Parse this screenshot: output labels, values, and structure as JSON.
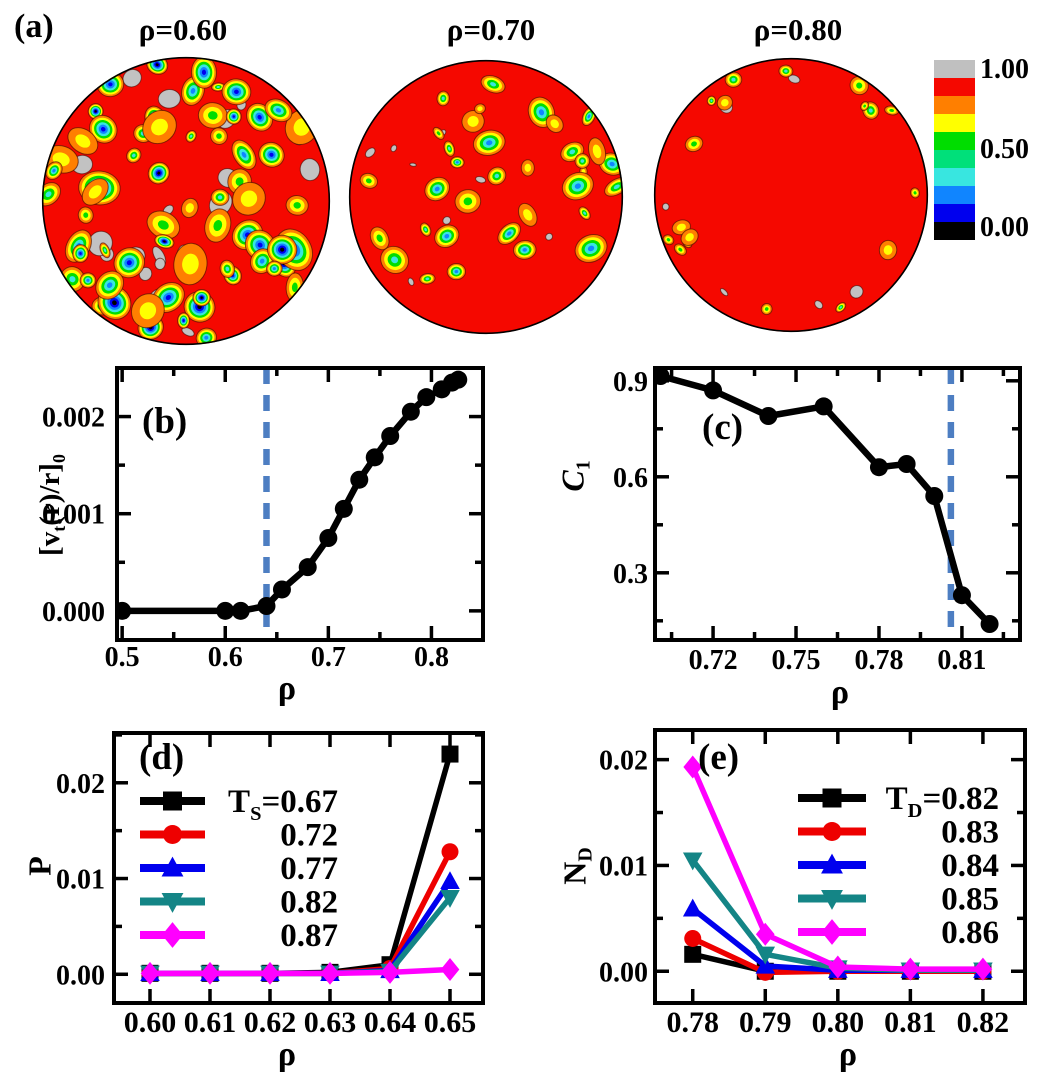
{
  "panel_a": {
    "label": "(a)",
    "plots": [
      {
        "title": "ρ=0.60",
        "description": "dense mixed contour field"
      },
      {
        "title": "ρ=0.70",
        "description": "mostly red, patches top and left"
      },
      {
        "title": "ρ=0.80",
        "description": "almost all red, small rim patches"
      }
    ],
    "colorbar": {
      "tick_labels": [
        "1.00",
        "0.50",
        "0.00"
      ],
      "colors": [
        "#c0c0c0",
        "#f50800",
        "#ff7f00",
        "#ffff00",
        "#00dd00",
        "#00e07a",
        "#38e6e0",
        "#1085ff",
        "#0000ee",
        "#000000"
      ]
    }
  },
  "chart_data": [
    {
      "id": "b",
      "panel": "(b)",
      "type": "line",
      "xlabel": "ρ",
      "ylabel_segments": [
        {
          "t": "[v"
        },
        {
          "t": "t",
          "sub": true
        },
        {
          "t": "(r)/r]"
        },
        {
          "t": "0",
          "sub": true
        }
      ],
      "xlim": [
        0.495,
        0.85
      ],
      "ylim": [
        -0.0003,
        0.0025
      ],
      "xticks": [
        0.5,
        0.6,
        0.7,
        0.8
      ],
      "xtick_labels": [
        "0.5",
        "0.6",
        "0.7",
        "0.8"
      ],
      "yticks": [
        0,
        0.001,
        0.002
      ],
      "ytick_labels": [
        "0.000",
        "0.001",
        "0.002"
      ],
      "xminor_step": 0.05,
      "yminor_step": 0.0005,
      "dashed_line_x": 0.64,
      "dashed_color": "#4d7ec2",
      "series": [
        {
          "name": "[vt(r)/r]0",
          "color": "#000000",
          "marker": "circle",
          "x": [
            0.5,
            0.6,
            0.615,
            0.64,
            0.655,
            0.68,
            0.7,
            0.715,
            0.73,
            0.745,
            0.76,
            0.78,
            0.795,
            0.81,
            0.82,
            0.826
          ],
          "y": [
            0.0,
            0.0,
            0.0,
            5e-05,
            0.00022,
            0.00045,
            0.00075,
            0.00105,
            0.00135,
            0.00158,
            0.0018,
            0.00205,
            0.0022,
            0.00228,
            0.00235,
            0.00238
          ]
        }
      ]
    },
    {
      "id": "c",
      "panel": "(c)",
      "type": "line",
      "xlabel": "ρ",
      "ylabel_segments": [
        {
          "t": "C",
          "italic": true
        },
        {
          "t": "1",
          "sub": true
        }
      ],
      "xlim": [
        0.699,
        0.831
      ],
      "ylim": [
        0.09,
        0.94
      ],
      "xticks": [
        0.72,
        0.75,
        0.78,
        0.81
      ],
      "xtick_labels": [
        "0.72",
        "0.75",
        "0.78",
        "0.81"
      ],
      "yticks": [
        0.3,
        0.6,
        0.9
      ],
      "ytick_labels": [
        "0.3",
        "0.6",
        "0.9"
      ],
      "xminor_step": 0.015,
      "yminor_step": 0.15,
      "dashed_line_x": 0.806,
      "dashed_color": "#4d7ec2",
      "series": [
        {
          "name": "C1",
          "color": "#000000",
          "marker": "circle",
          "x": [
            0.701,
            0.72,
            0.74,
            0.76,
            0.78,
            0.79,
            0.8,
            0.81,
            0.82
          ],
          "y": [
            0.915,
            0.87,
            0.79,
            0.82,
            0.63,
            0.64,
            0.54,
            0.23,
            0.14
          ]
        }
      ]
    },
    {
      "id": "d",
      "panel": "(d)",
      "type": "line",
      "xlabel": "ρ",
      "ylabel_segments": [
        {
          "t": "P"
        }
      ],
      "xlim": [
        0.594,
        0.6555
      ],
      "ylim": [
        -0.003,
        0.0252
      ],
      "xticks": [
        0.6,
        0.61,
        0.62,
        0.63,
        0.64,
        0.65
      ],
      "xtick_labels": [
        "0.60",
        "0.61",
        "0.62",
        "0.63",
        "0.64",
        "0.65"
      ],
      "yticks": [
        0,
        0.01,
        0.02
      ],
      "ytick_labels": [
        "0.00",
        "0.01",
        "0.02"
      ],
      "yminor_step": 0.005,
      "legend": {
        "entries": [
          {
            "segments": [
              {
                "t": "T"
              },
              {
                "t": "S",
                "sub": true
              },
              {
                "t": "=0.67"
              }
            ],
            "color": "#000000",
            "marker": "square"
          },
          {
            "segments": [
              {
                "t": "0.72"
              }
            ],
            "color": "#ee0000",
            "marker": "circle"
          },
          {
            "segments": [
              {
                "t": "0.77"
              }
            ],
            "color": "#0000ee",
            "marker": "triangle-up"
          },
          {
            "segments": [
              {
                "t": "0.82"
              }
            ],
            "color": "#148586",
            "marker": "triangle-down"
          },
          {
            "segments": [
              {
                "t": "0.87"
              }
            ],
            "color": "#ff00ff",
            "marker": "diamond"
          }
        ]
      },
      "series": [
        {
          "name": "TS=0.67",
          "color": "#000000",
          "marker": "square",
          "x": [
            0.6,
            0.61,
            0.62,
            0.63,
            0.64,
            0.65
          ],
          "y": [
            0.0001,
            0.0001,
            0.0001,
            0.0002,
            0.001,
            0.023
          ]
        },
        {
          "name": "TS=0.72",
          "color": "#ee0000",
          "marker": "circle",
          "x": [
            0.6,
            0.61,
            0.62,
            0.63,
            0.64,
            0.65
          ],
          "y": [
            0.0001,
            0.0001,
            0.0001,
            0.0001,
            0.0006,
            0.0128
          ]
        },
        {
          "name": "TS=0.77",
          "color": "#0000ee",
          "marker": "triangle-up",
          "x": [
            0.6,
            0.61,
            0.62,
            0.63,
            0.64,
            0.65
          ],
          "y": [
            0.0001,
            0.0001,
            0.0001,
            0.0001,
            0.0004,
            0.0097
          ]
        },
        {
          "name": "TS=0.82",
          "color": "#148586",
          "marker": "triangle-down",
          "x": [
            0.6,
            0.61,
            0.62,
            0.63,
            0.64,
            0.65
          ],
          "y": [
            0.0001,
            0.0001,
            0.0001,
            0.0001,
            0.0003,
            0.008
          ]
        },
        {
          "name": "TS=0.87",
          "color": "#ff00ff",
          "marker": "diamond",
          "x": [
            0.6,
            0.61,
            0.62,
            0.63,
            0.64,
            0.65
          ],
          "y": [
            0.0001,
            0.0001,
            0.0001,
            0.0001,
            0.0002,
            0.0005
          ]
        }
      ]
    },
    {
      "id": "e",
      "panel": "(e)",
      "type": "line",
      "xlabel": "ρ",
      "ylabel_segments": [
        {
          "t": "N"
        },
        {
          "t": "D",
          "sub": true
        }
      ],
      "xlim": [
        0.7748,
        0.8258
      ],
      "ylim": [
        -0.003,
        0.0228
      ],
      "xticks": [
        0.78,
        0.79,
        0.8,
        0.81,
        0.82
      ],
      "xtick_labels": [
        "0.78",
        "0.79",
        "0.80",
        "0.81",
        "0.82"
      ],
      "yticks": [
        0,
        0.01,
        0.02
      ],
      "ytick_labels": [
        "0.00",
        "0.01",
        "0.02"
      ],
      "yminor_step": 0.005,
      "legend": {
        "entries": [
          {
            "segments": [
              {
                "t": "T"
              },
              {
                "t": "D",
                "sub": true
              },
              {
                "t": "=0.82"
              }
            ],
            "color": "#000000",
            "marker": "square"
          },
          {
            "segments": [
              {
                "t": "0.83"
              }
            ],
            "color": "#ee0000",
            "marker": "circle"
          },
          {
            "segments": [
              {
                "t": "0.84"
              }
            ],
            "color": "#0000ee",
            "marker": "triangle-up"
          },
          {
            "segments": [
              {
                "t": "0.85"
              }
            ],
            "color": "#148586",
            "marker": "triangle-down"
          },
          {
            "segments": [
              {
                "t": "0.86"
              }
            ],
            "color": "#ff00ff",
            "marker": "diamond"
          }
        ]
      },
      "series": [
        {
          "name": "TD=0.82",
          "color": "#000000",
          "marker": "square",
          "x": [
            0.78,
            0.79,
            0.8,
            0.81,
            0.82
          ],
          "y": [
            0.0016,
            0.0,
            0.0,
            0.0,
            0.0
          ]
        },
        {
          "name": "TD=0.83",
          "color": "#ee0000",
          "marker": "circle",
          "x": [
            0.78,
            0.79,
            0.8,
            0.81,
            0.82
          ],
          "y": [
            0.0031,
            -0.0001,
            0.0,
            0.0,
            0.0
          ]
        },
        {
          "name": "TD=0.84",
          "color": "#0000ee",
          "marker": "triangle-up",
          "x": [
            0.78,
            0.79,
            0.8,
            0.81,
            0.82
          ],
          "y": [
            0.0059,
            0.0005,
            0.0001,
            0.0001,
            0.0001
          ]
        },
        {
          "name": "TD=0.85",
          "color": "#148586",
          "marker": "triangle-down",
          "x": [
            0.78,
            0.79,
            0.8,
            0.81,
            0.82
          ],
          "y": [
            0.0105,
            0.0016,
            0.0003,
            0.0001,
            0.0001
          ]
        },
        {
          "name": "TD=0.86",
          "color": "#ff00ff",
          "marker": "diamond",
          "x": [
            0.78,
            0.79,
            0.8,
            0.81,
            0.82
          ],
          "y": [
            0.0193,
            0.0035,
            0.0004,
            0.0002,
            0.0002
          ]
        }
      ]
    }
  ]
}
